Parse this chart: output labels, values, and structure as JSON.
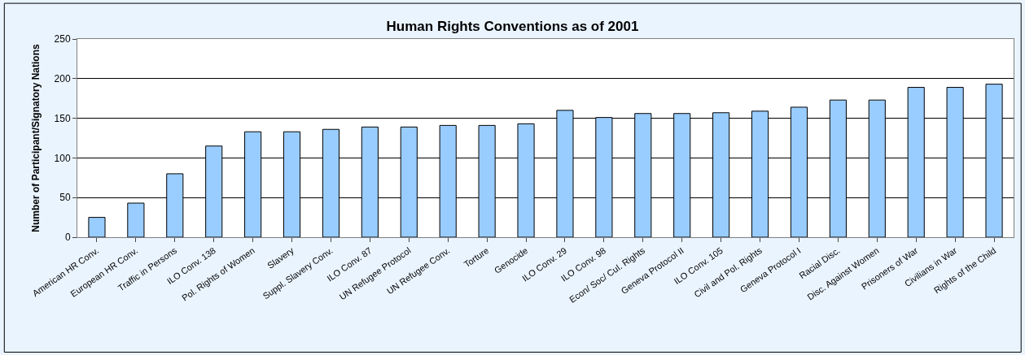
{
  "chart_data": {
    "type": "bar",
    "title": "Human Rights Conventions as of 2001",
    "ylabel": "Number of Participant/Signatory Nations",
    "categories": [
      "American HR Conv.",
      "European HR Conv.",
      "Traffic in Persons",
      "ILO Conv. 138",
      "Pol. Rights of Women",
      "Slavery",
      "Suppl. Slavery Conv.",
      "ILO Conv. 87",
      "UN Refugee Protocol",
      "UN Refugee Conv.",
      "Torture",
      "Genocide",
      "ILO Conv. 29",
      "ILO Conv. 98",
      "Econ/ Soc/ Cul. Rights",
      "Geneva Protocol II",
      "ILO Conv. 105",
      "Civil and Pol. Rights",
      "Geneva Protocol I",
      "Racial Disc.",
      "Disc. Against Women",
      "Prisoners of War",
      "Civilians in War",
      "Rights of the Child"
    ],
    "values": [
      25,
      43,
      80,
      115,
      133,
      133,
      136,
      139,
      139,
      141,
      141,
      143,
      160,
      151,
      156,
      156,
      157,
      159,
      164,
      173,
      173,
      189,
      189,
      193
    ],
    "color": "#99ccff",
    "ylim": [
      0,
      250
    ],
    "yticks": [
      0,
      50,
      100,
      150,
      200,
      250
    ],
    "grid": "y"
  }
}
